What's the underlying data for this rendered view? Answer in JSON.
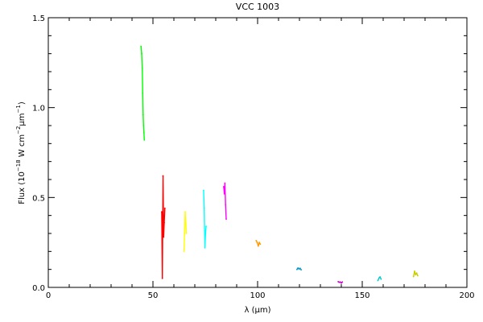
{
  "chart_data": {
    "type": "line",
    "title": "VCC 1003",
    "xlabel": "λ (μm)",
    "ylabel_parts": {
      "flux": "Flux (10",
      "exp1": "−18",
      "unit1": " W cm",
      "exp2": "−2",
      "unit2": "μm",
      "exp3": "−1",
      "close": ")"
    },
    "xlim": [
      0,
      200
    ],
    "ylim": [
      0,
      1.5
    ],
    "xticks": [
      0,
      50,
      100,
      150,
      200
    ],
    "xtick_labels": [
      "0",
      "50",
      "100",
      "150",
      "200"
    ],
    "yticks": [
      0.0,
      0.5,
      1.0,
      1.5
    ],
    "ytick_labels": [
      "0.0",
      "0.5",
      "1.0",
      "1.5"
    ],
    "grid": false,
    "series": [
      {
        "color": "#00ff00",
        "x": [
          44.3,
          44.6,
          44.9,
          45.1,
          45.3,
          45.5,
          45.7,
          45.9
        ],
        "y": [
          1.34,
          1.3,
          1.22,
          1.08,
          0.96,
          0.9,
          0.86,
          0.82
        ]
      },
      {
        "color": "#ff0000",
        "x": [
          54.2,
          54.5,
          54.8,
          55.1,
          55.4,
          55.7
        ],
        "y": [
          0.42,
          0.05,
          0.62,
          0.28,
          0.36,
          0.44
        ]
      },
      {
        "color": "#ffff00",
        "x": [
          64.8,
          65.1,
          65.4,
          65.7,
          66.0
        ],
        "y": [
          0.2,
          0.3,
          0.42,
          0.36,
          0.3
        ]
      },
      {
        "color": "#00ffff",
        "x": [
          74.2,
          74.5,
          74.8,
          75.1,
          75.4
        ],
        "y": [
          0.54,
          0.44,
          0.22,
          0.3,
          0.34
        ]
      },
      {
        "color": "#ff00ff",
        "x": [
          83.8,
          84.1,
          84.4,
          84.7,
          85.0
        ],
        "y": [
          0.56,
          0.52,
          0.58,
          0.46,
          0.38
        ]
      },
      {
        "color": "#ff9900",
        "x": [
          99.3,
          99.8,
          100.3,
          100.8,
          101.3
        ],
        "y": [
          0.26,
          0.25,
          0.23,
          0.25,
          0.24
        ]
      },
      {
        "color": "#0099cc",
        "x": [
          118.8,
          119.3,
          119.8,
          120.3,
          120.8
        ],
        "y": [
          0.1,
          0.108,
          0.102,
          0.106,
          0.098
        ]
      },
      {
        "color": "#cc00cc",
        "x": [
          138.5,
          139.0,
          139.5,
          140.0,
          140.5
        ],
        "y": [
          0.032,
          0.028,
          0.03,
          0.024,
          0.03
        ]
      },
      {
        "color": "#00cccc",
        "x": [
          157.5,
          158.0,
          158.5,
          159.0
        ],
        "y": [
          0.038,
          0.052,
          0.058,
          0.046
        ]
      },
      {
        "color": "#cccc00",
        "x": [
          174.5,
          175.0,
          175.5,
          176.0,
          176.5
        ],
        "y": [
          0.06,
          0.09,
          0.07,
          0.08,
          0.065
        ]
      }
    ]
  }
}
